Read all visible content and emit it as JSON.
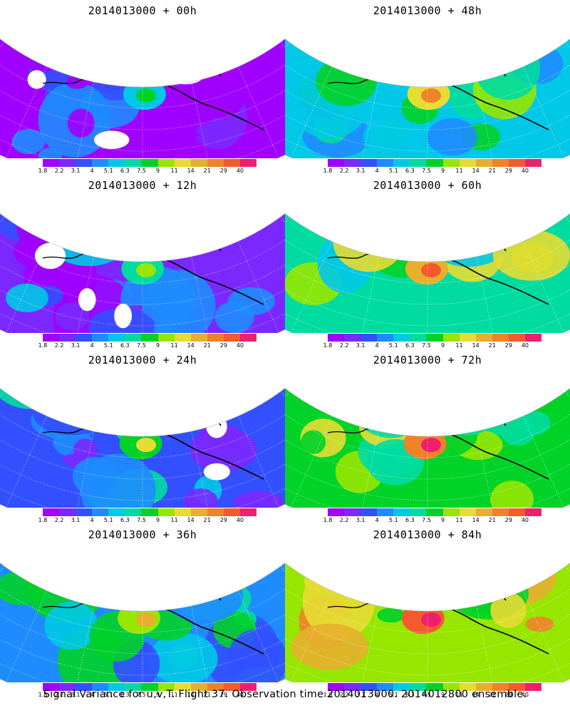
{
  "panels": [
    {
      "title": "2014013000 + 00h",
      "level": 0
    },
    {
      "title": "2014013000 + 48h",
      "level": 4
    },
    {
      "title": "2014013000 + 12h",
      "level": 1
    },
    {
      "title": "2014013000 + 60h",
      "level": 5
    },
    {
      "title": "2014013000 + 24h",
      "level": 2
    },
    {
      "title": "2014013000 + 72h",
      "level": 6
    },
    {
      "title": "2014013000 + 36h",
      "level": 3
    },
    {
      "title": "2014013000 + 84h",
      "level": 7
    }
  ],
  "colorbar": {
    "colors": [
      "#a000ff",
      "#7a28ff",
      "#3250ff",
      "#1e8cff",
      "#00c8e6",
      "#00dca0",
      "#00d228",
      "#96e600",
      "#e6dc32",
      "#e6af2d",
      "#f08228",
      "#f55a2d",
      "#f01e6e"
    ],
    "labels": [
      "1.8",
      "2.2",
      "3.1",
      "4",
      "5.1",
      "6.3",
      "7.5",
      "9",
      "11",
      "14",
      "21",
      "29",
      "40"
    ]
  },
  "caption": "Signal Variance for u,v,T. Flight 37. Observation time 2014013000. 2014012800 ensemble."
}
